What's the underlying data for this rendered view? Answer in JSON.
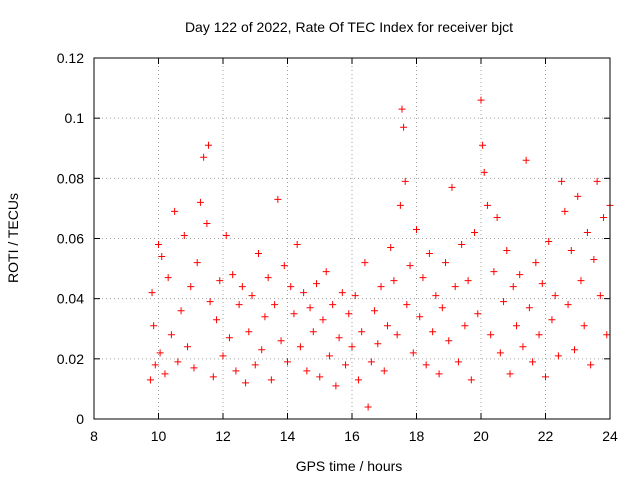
{
  "chart_data": {
    "type": "scatter",
    "title": "Day 122 of 2022, Rate Of TEC Index for receiver bjct",
    "xlabel": "GPS time / hours",
    "ylabel": "ROTI / TECUs",
    "xlim": [
      8,
      24
    ],
    "ylim": [
      0,
      0.12
    ],
    "x_ticks": [
      8,
      10,
      12,
      14,
      16,
      18,
      20,
      22,
      24
    ],
    "y_ticks": [
      0,
      0.02,
      0.04,
      0.06,
      0.08,
      0.1,
      0.12
    ],
    "x_tick_labels": [
      "8",
      "10",
      "12",
      "14",
      "16",
      "18",
      "20",
      "22",
      "24"
    ],
    "y_tick_labels": [
      "0",
      "0.02",
      "0.04",
      "0.06",
      "0.08",
      "0.1",
      "0.12"
    ],
    "grid": true,
    "legend": "none",
    "marker": "plus",
    "color": "#ff0000",
    "series": [
      {
        "x": [
          9.75,
          9.8,
          9.85,
          9.9,
          10.0,
          10.05,
          10.1,
          10.2,
          10.3,
          10.4,
          10.5,
          10.6,
          10.7,
          10.8,
          10.9,
          11.0,
          11.1,
          11.2,
          11.3,
          11.4,
          11.5,
          11.55,
          11.6,
          11.7,
          11.8,
          11.9,
          12.0,
          12.1,
          12.2,
          12.3,
          12.4,
          12.5,
          12.6,
          12.7,
          12.8,
          12.9,
          13.0,
          13.1,
          13.2,
          13.3,
          13.4,
          13.5,
          13.6,
          13.7,
          13.8,
          13.9,
          14.0,
          14.1,
          14.2,
          14.3,
          14.4,
          14.5,
          14.6,
          14.7,
          14.8,
          14.9,
          15.0,
          15.1,
          15.2,
          15.3,
          15.4,
          15.5,
          15.6,
          15.7,
          15.8,
          15.9,
          16.0,
          16.1,
          16.2,
          16.3,
          16.4,
          16.5,
          16.6,
          16.7,
          16.8,
          16.9,
          17.0,
          17.1,
          17.2,
          17.3,
          17.4,
          17.5,
          17.55,
          17.6,
          17.65,
          17.7,
          17.8,
          17.9,
          18.0,
          18.1,
          18.2,
          18.3,
          18.4,
          18.5,
          18.6,
          18.7,
          18.8,
          18.9,
          19.0,
          19.1,
          19.2,
          19.3,
          19.4,
          19.5,
          19.6,
          19.7,
          19.8,
          19.9,
          20.0,
          20.05,
          20.1,
          20.2,
          20.3,
          20.4,
          20.5,
          20.6,
          20.7,
          20.8,
          20.9,
          21.0,
          21.1,
          21.2,
          21.3,
          21.4,
          21.5,
          21.6,
          21.7,
          21.8,
          21.9,
          22.0,
          22.1,
          22.2,
          22.3,
          22.4,
          22.5,
          22.6,
          22.7,
          22.8,
          22.9,
          23.0,
          23.1,
          23.2,
          23.3,
          23.4,
          23.5,
          23.6,
          23.7,
          23.8,
          23.9,
          24.0
        ],
        "y": [
          0.013,
          0.042,
          0.031,
          0.018,
          0.058,
          0.022,
          0.054,
          0.015,
          0.047,
          0.028,
          0.069,
          0.019,
          0.036,
          0.061,
          0.024,
          0.044,
          0.017,
          0.052,
          0.072,
          0.087,
          0.065,
          0.091,
          0.039,
          0.014,
          0.033,
          0.046,
          0.021,
          0.061,
          0.027,
          0.048,
          0.016,
          0.038,
          0.044,
          0.012,
          0.029,
          0.041,
          0.018,
          0.055,
          0.023,
          0.034,
          0.047,
          0.013,
          0.038,
          0.073,
          0.026,
          0.051,
          0.019,
          0.044,
          0.035,
          0.058,
          0.024,
          0.042,
          0.016,
          0.037,
          0.029,
          0.045,
          0.014,
          0.033,
          0.049,
          0.021,
          0.038,
          0.011,
          0.027,
          0.042,
          0.018,
          0.035,
          0.024,
          0.041,
          0.013,
          0.029,
          0.052,
          0.004,
          0.019,
          0.036,
          0.025,
          0.044,
          0.016,
          0.031,
          0.057,
          0.046,
          0.028,
          0.071,
          0.103,
          0.097,
          0.079,
          0.038,
          0.051,
          0.022,
          0.063,
          0.034,
          0.047,
          0.018,
          0.055,
          0.029,
          0.041,
          0.015,
          0.037,
          0.052,
          0.026,
          0.077,
          0.044,
          0.019,
          0.058,
          0.031,
          0.046,
          0.013,
          0.062,
          0.035,
          0.106,
          0.091,
          0.082,
          0.071,
          0.028,
          0.049,
          0.067,
          0.022,
          0.039,
          0.056,
          0.015,
          0.044,
          0.031,
          0.048,
          0.024,
          0.086,
          0.037,
          0.019,
          0.052,
          0.028,
          0.045,
          0.014,
          0.059,
          0.033,
          0.041,
          0.021,
          0.079,
          0.069,
          0.038,
          0.056,
          0.023,
          0.074,
          0.046,
          0.031,
          0.062,
          0.018,
          0.053,
          0.079,
          0.041,
          0.067,
          0.028,
          0.071
        ]
      }
    ]
  }
}
